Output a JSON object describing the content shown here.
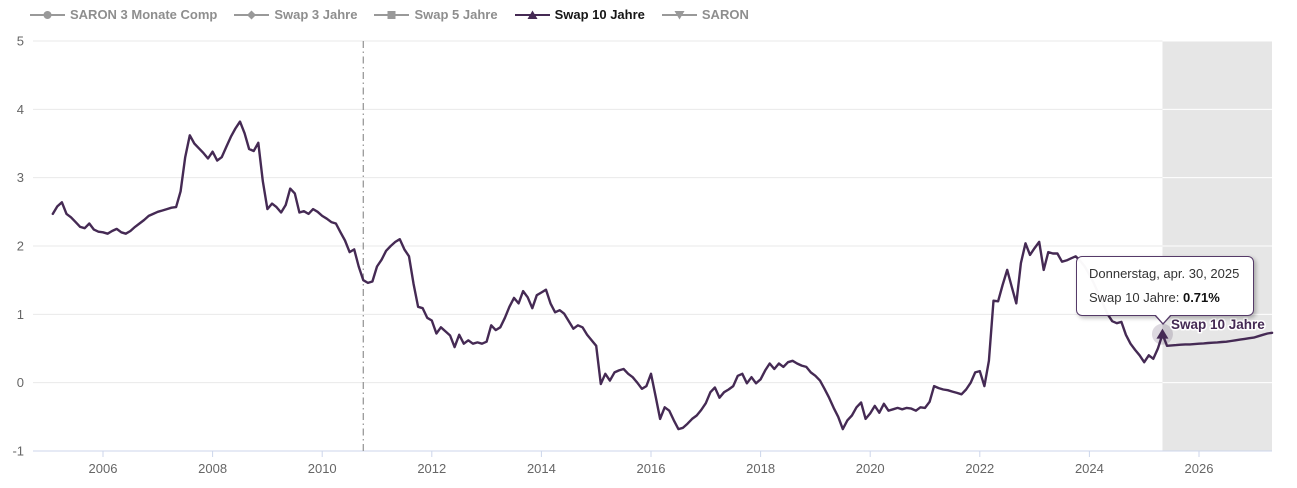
{
  "legend": {
    "items": [
      {
        "label": "SARON 3 Monate Comp",
        "marker": "circle",
        "color": "#999999",
        "active": false
      },
      {
        "label": "Swap 3 Jahre",
        "marker": "diamond",
        "color": "#999999",
        "active": false
      },
      {
        "label": "Swap 5 Jahre",
        "marker": "square",
        "color": "#999999",
        "active": false
      },
      {
        "label": "Swap 10 Jahre",
        "marker": "triangle-up",
        "color": "#452a54",
        "active": true
      },
      {
        "label": "SARON",
        "marker": "triangle-down",
        "color": "#999999",
        "active": false
      }
    ]
  },
  "tooltip": {
    "date_line": "Donnerstag, apr. 30, 2025",
    "series_label": "Swap 10 Jahre:",
    "value": "0.71%"
  },
  "series_inline_label": "Swap 10 Jahre",
  "colors": {
    "series": "#452a54",
    "inactive_gray": "#999999",
    "grid": "#e9e9e9",
    "axis_line": "#ccd6eb",
    "axis_label": "#666666",
    "forecast_band": "#e6e6e6",
    "plot_line": "#9a9a9a",
    "tooltip_border": "#553a68"
  },
  "chart_data": {
    "type": "line",
    "title": "",
    "xlabel": "",
    "ylabel": "",
    "x_axis": {
      "tick_years": [
        2006,
        2008,
        2010,
        2012,
        2014,
        2016,
        2018,
        2020,
        2022,
        2024,
        2026
      ],
      "range": [
        2004.77,
        2027.42
      ]
    },
    "y_axis": {
      "ticks": [
        -1,
        0,
        1,
        2,
        3,
        4,
        5
      ],
      "range": [
        -1,
        5
      ]
    },
    "grid": true,
    "legend_position": "top-left",
    "hidden_series": [
      "SARON 3 Monate Comp",
      "Swap 3 Jahre",
      "Swap 5 Jahre",
      "SARON"
    ],
    "plot_line": {
      "year": 2010.75,
      "style": "dash-dot"
    },
    "forecast_band": {
      "start_year": 2025.333,
      "end_year": 2027.42
    },
    "highlight_point": {
      "date_label": "Donnerstag, apr. 30, 2025",
      "year": 2025.333,
      "value": 0.71
    },
    "series": [
      {
        "name": "Swap 10 Jahre",
        "unit": "%",
        "start": "2005-01",
        "step": "monthly",
        "forecast_start_index": 244,
        "values": [
          2.47,
          2.58,
          2.64,
          2.47,
          2.42,
          2.35,
          2.28,
          2.26,
          2.33,
          2.24,
          2.21,
          2.2,
          2.18,
          2.22,
          2.25,
          2.2,
          2.18,
          2.22,
          2.28,
          2.33,
          2.38,
          2.44,
          2.47,
          2.5,
          2.52,
          2.54,
          2.56,
          2.57,
          2.8,
          3.3,
          3.62,
          3.5,
          3.43,
          3.36,
          3.28,
          3.38,
          3.25,
          3.3,
          3.45,
          3.6,
          3.72,
          3.82,
          3.65,
          3.42,
          3.39,
          3.51,
          2.95,
          2.54,
          2.62,
          2.57,
          2.49,
          2.6,
          2.84,
          2.77,
          2.49,
          2.51,
          2.47,
          2.54,
          2.5,
          2.44,
          2.4,
          2.35,
          2.33,
          2.2,
          2.08,
          1.91,
          1.95,
          1.7,
          1.5,
          1.46,
          1.48,
          1.7,
          1.8,
          1.93,
          2.0,
          2.06,
          2.1,
          1.95,
          1.85,
          1.45,
          1.11,
          1.09,
          0.95,
          0.91,
          0.72,
          0.81,
          0.75,
          0.69,
          0.52,
          0.7,
          0.57,
          0.62,
          0.57,
          0.59,
          0.57,
          0.6,
          0.84,
          0.77,
          0.81,
          0.95,
          1.11,
          1.24,
          1.16,
          1.34,
          1.25,
          1.09,
          1.28,
          1.32,
          1.36,
          1.16,
          1.03,
          1.06,
          1.01,
          0.9,
          0.79,
          0.84,
          0.81,
          0.7,
          0.62,
          0.54,
          -0.02,
          0.13,
          0.03,
          0.15,
          0.18,
          0.2,
          0.13,
          0.08,
          0.0,
          -0.09,
          -0.05,
          0.13,
          -0.2,
          -0.53,
          -0.36,
          -0.41,
          -0.55,
          -0.68,
          -0.66,
          -0.6,
          -0.53,
          -0.48,
          -0.4,
          -0.3,
          -0.14,
          -0.07,
          -0.22,
          -0.14,
          -0.1,
          -0.05,
          0.1,
          0.13,
          -0.01,
          0.08,
          -0.01,
          0.05,
          0.18,
          0.28,
          0.2,
          0.28,
          0.23,
          0.3,
          0.32,
          0.28,
          0.25,
          0.23,
          0.15,
          0.1,
          0.03,
          -0.09,
          -0.22,
          -0.37,
          -0.5,
          -0.68,
          -0.55,
          -0.48,
          -0.36,
          -0.29,
          -0.53,
          -0.45,
          -0.34,
          -0.44,
          -0.31,
          -0.41,
          -0.39,
          -0.37,
          -0.39,
          -0.37,
          -0.38,
          -0.41,
          -0.36,
          -0.37,
          -0.28,
          -0.05,
          -0.08,
          -0.1,
          -0.11,
          -0.13,
          -0.15,
          -0.17,
          -0.1,
          0.0,
          0.15,
          0.17,
          -0.05,
          0.32,
          1.2,
          1.19,
          1.43,
          1.65,
          1.4,
          1.16,
          1.75,
          2.04,
          1.87,
          1.97,
          2.06,
          1.65,
          1.91,
          1.89,
          1.89,
          1.77,
          1.79,
          1.82,
          1.85,
          1.78,
          1.7,
          1.58,
          1.45,
          1.3,
          1.15,
          1.0,
          0.9,
          0.87,
          0.89,
          0.7,
          0.57,
          0.48,
          0.4,
          0.3,
          0.4,
          0.35,
          0.5,
          0.71,
          0.54,
          0.545,
          0.55,
          0.555,
          0.56,
          0.56,
          0.565,
          0.57,
          0.575,
          0.58,
          0.585,
          0.59,
          0.595,
          0.6,
          0.61,
          0.62,
          0.63,
          0.64,
          0.65,
          0.66,
          0.68,
          0.7,
          0.72,
          0.73
        ]
      }
    ]
  }
}
